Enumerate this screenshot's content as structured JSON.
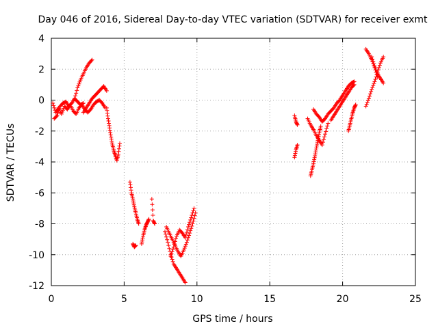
{
  "chart_data": {
    "type": "scatter",
    "title": "Day 046 of 2016, Sidereal Day-to-day VTEC variation (SDTVAR) for receiver exmt",
    "xlabel": "GPS time / hours",
    "ylabel": "SDTVAR / TECUs",
    "xlim": [
      0,
      25
    ],
    "ylim": [
      -12,
      4
    ],
    "xticks": [
      0,
      5,
      10,
      15,
      20,
      25
    ],
    "yticks": [
      -12,
      -10,
      -8,
      -6,
      -4,
      -2,
      0,
      2,
      4
    ],
    "xtick_labels": [
      "0",
      "5",
      "10",
      "15",
      "20",
      "25"
    ],
    "ytick_labels": [
      "-12",
      "-10",
      "-8",
      "-6",
      "-4",
      "-2",
      "0",
      "2",
      "4"
    ],
    "grid": true,
    "marker": "+",
    "color": "#ff0000",
    "series": [
      {
        "name": "SDTVAR",
        "tracks": [
          {
            "x": [
              0.1,
              0.3,
              0.5,
              0.7,
              0.9,
              1.1,
              1.3,
              1.5,
              1.7,
              1.9,
              2.1,
              2.3,
              2.5,
              2.7,
              2.9,
              3.1,
              3.3,
              3.5,
              3.7
            ],
            "y": [
              -0.2,
              -0.8,
              -0.5,
              -0.9,
              -0.4,
              -0.6,
              -0.3,
              -0.7,
              -0.9,
              -0.5,
              -0.3,
              -0.6,
              -0.8,
              -0.6,
              -0.3,
              -0.1,
              0.0,
              -0.2,
              -0.5
            ]
          },
          {
            "x": [
              0.2,
              0.4,
              0.6,
              0.8,
              1.0,
              1.2,
              1.4,
              1.6,
              1.8,
              2.0,
              2.2
            ],
            "y": [
              -1.2,
              -1.0,
              -0.4,
              -0.2,
              -0.1,
              -0.4,
              -0.2,
              0.1,
              -0.1,
              -0.3,
              -0.2
            ]
          },
          {
            "x": [
              1.6,
              1.8,
              2.0,
              2.2,
              2.4,
              2.6,
              2.8
            ],
            "y": [
              0.1,
              0.8,
              1.3,
              1.7,
              2.1,
              2.4,
              2.6
            ]
          },
          {
            "x": [
              2.2,
              2.4,
              2.6,
              2.8,
              3.0,
              3.2,
              3.4,
              3.6,
              3.8
            ],
            "y": [
              -0.8,
              -0.5,
              -0.2,
              0.1,
              0.3,
              0.5,
              0.7,
              0.9,
              0.6
            ]
          },
          {
            "x": [
              3.8,
              3.9,
              4.0,
              4.1,
              4.2,
              4.3,
              4.4,
              4.5,
              4.6,
              4.7
            ],
            "y": [
              -0.5,
              -1.2,
              -1.8,
              -2.4,
              -2.9,
              -3.3,
              -3.6,
              -3.9,
              -3.5,
              -2.8
            ]
          },
          {
            "x": [
              5.4,
              5.5,
              5.6,
              5.7,
              5.8,
              5.9,
              6.0
            ],
            "y": [
              -5.3,
              -6.0,
              -6.4,
              -6.9,
              -7.3,
              -7.7,
              -8.0
            ]
          },
          {
            "x": [
              5.6,
              5.7,
              5.8
            ],
            "y": [
              -9.3,
              -9.5,
              -9.4
            ]
          },
          {
            "x": [
              6.2,
              6.3,
              6.4,
              6.5,
              6.6,
              6.7
            ],
            "y": [
              -9.3,
              -8.8,
              -8.4,
              -8.1,
              -7.9,
              -7.7
            ]
          },
          {
            "x": [
              6.9,
              7.0,
              7.1
            ],
            "y": [
              -6.4,
              -7.8,
              -8.0
            ]
          },
          {
            "x": [
              7.8,
              8.0,
              8.2,
              8.4,
              8.6,
              8.8,
              9.0,
              9.2
            ],
            "y": [
              -8.5,
              -9.2,
              -10.0,
              -10.6,
              -10.9,
              -11.2,
              -11.5,
              -11.8
            ]
          },
          {
            "x": [
              7.9,
              8.1,
              8.3,
              8.5,
              8.7,
              8.9,
              9.1,
              9.3,
              9.5,
              9.7,
              9.9
            ],
            "y": [
              -8.2,
              -8.6,
              -9.0,
              -9.4,
              -9.8,
              -10.1,
              -9.7,
              -9.2,
              -8.6,
              -8.0,
              -7.3
            ]
          },
          {
            "x": [
              8.2,
              8.4,
              8.6,
              8.8,
              9.0,
              9.2,
              9.4,
              9.6,
              9.8
            ],
            "y": [
              -10.1,
              -9.5,
              -8.8,
              -8.4,
              -8.6,
              -8.9,
              -8.2,
              -7.6,
              -7.0
            ]
          },
          {
            "x": [
              16.7,
              16.8,
              16.9
            ],
            "y": [
              -1.0,
              -1.4,
              -1.6
            ]
          },
          {
            "x": [
              16.7,
              16.8,
              16.9
            ],
            "y": [
              -3.7,
              -3.2,
              -2.9
            ]
          },
          {
            "x": [
              17.6,
              17.8,
              18.0,
              18.2,
              18.4,
              18.6,
              18.8,
              19.0
            ],
            "y": [
              -1.2,
              -1.6,
              -1.9,
              -2.3,
              -2.6,
              -2.9,
              -2.2,
              -1.5
            ]
          },
          {
            "x": [
              17.8,
              17.9,
              18.0,
              18.1,
              18.2,
              18.3,
              18.4,
              18.5
            ],
            "y": [
              -4.9,
              -4.5,
              -4.1,
              -3.6,
              -3.1,
              -2.6,
              -2.1,
              -1.7
            ]
          },
          {
            "x": [
              18.0,
              18.2,
              18.4,
              18.6,
              18.8,
              19.0,
              19.2,
              19.4,
              19.6,
              19.8,
              20.0,
              20.2,
              20.4,
              20.6,
              20.8
            ],
            "y": [
              -0.6,
              -0.9,
              -1.1,
              -1.4,
              -1.2,
              -0.9,
              -0.7,
              -0.5,
              -0.2,
              0.0,
              0.3,
              0.6,
              0.9,
              1.1,
              1.2
            ]
          },
          {
            "x": [
              19.2,
              19.4,
              19.6,
              19.8,
              20.0,
              20.2,
              20.4,
              20.6,
              20.8
            ],
            "y": [
              -1.3,
              -1.0,
              -0.7,
              -0.4,
              -0.1,
              0.2,
              0.5,
              0.8,
              1.0
            ]
          },
          {
            "x": [
              20.4,
              20.5,
              20.6,
              20.7,
              20.8,
              20.9
            ],
            "y": [
              -2.0,
              -1.6,
              -1.2,
              -0.8,
              -0.5,
              -0.3
            ]
          },
          {
            "x": [
              21.6,
              21.8,
              22.0,
              22.2,
              22.4
            ],
            "y": [
              3.3,
              3.0,
              2.6,
              2.1,
              1.5
            ]
          },
          {
            "x": [
              21.6,
              21.8,
              22.0,
              22.2,
              22.4,
              22.6,
              22.8
            ],
            "y": [
              -0.4,
              0.1,
              0.7,
              1.2,
              1.8,
              2.4,
              2.8
            ]
          },
          {
            "x": [
              22.0,
              22.2,
              22.4,
              22.6,
              22.8
            ],
            "y": [
              2.8,
              2.2,
              1.7,
              1.4,
              1.1
            ]
          }
        ]
      }
    ]
  }
}
